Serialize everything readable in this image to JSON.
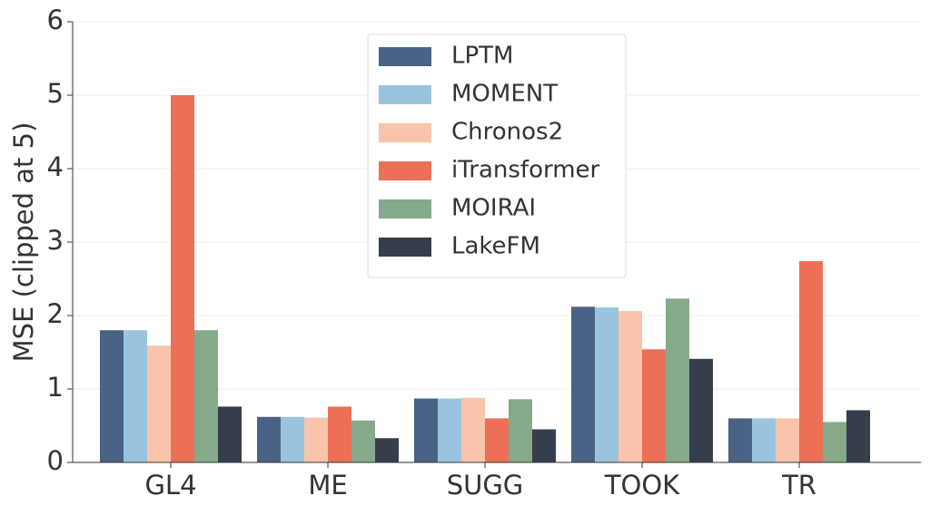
{
  "chart_data": {
    "type": "bar",
    "y_label": "MSE (clipped at 5)",
    "categories": [
      "GL4",
      "ME",
      "SUGG",
      "TOOK",
      "TR"
    ],
    "series": [
      {
        "name": "LPTM",
        "color": "#4a6285",
        "values": [
          1.8,
          0.62,
          0.87,
          2.12,
          0.6
        ]
      },
      {
        "name": "MOMENT",
        "color": "#9ac4de",
        "values": [
          1.8,
          0.62,
          0.87,
          2.11,
          0.6
        ]
      },
      {
        "name": "Chronos2",
        "color": "#f9c4ab",
        "values": [
          1.59,
          0.61,
          0.88,
          2.06,
          0.6
        ]
      },
      {
        "name": "iTransformer",
        "color": "#ec7056",
        "values": [
          5.0,
          0.76,
          0.6,
          1.54,
          2.74
        ]
      },
      {
        "name": "MOIRAI",
        "color": "#86a98a",
        "values": [
          1.8,
          0.57,
          0.86,
          2.23,
          0.55
        ]
      },
      {
        "name": "LakeFM",
        "color": "#363e4b",
        "values": [
          0.76,
          0.33,
          0.45,
          1.41,
          0.71
        ]
      }
    ],
    "ylim": [
      0,
      6
    ],
    "yticks": [
      0,
      1,
      2,
      3,
      4,
      5,
      6
    ],
    "grid": true,
    "legend": "top-center"
  }
}
